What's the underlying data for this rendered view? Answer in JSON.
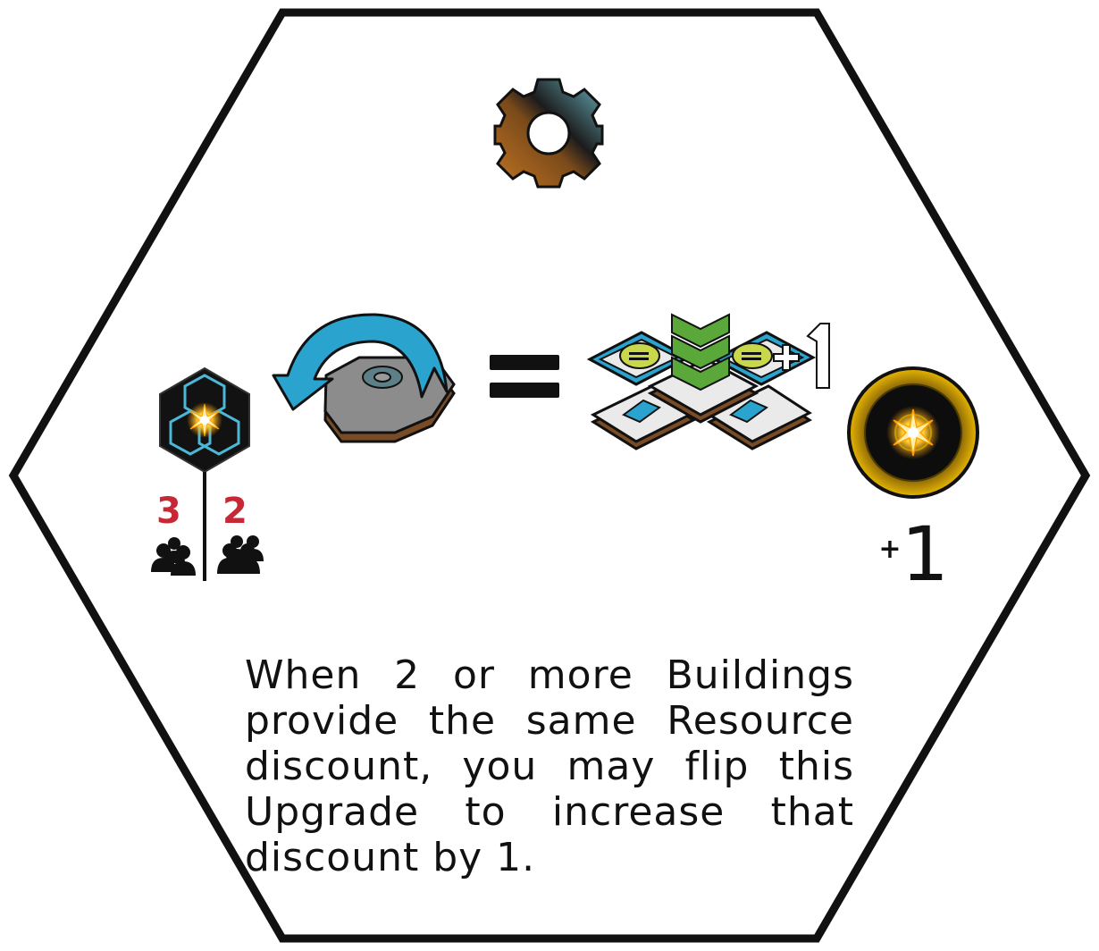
{
  "card": {
    "type_icon": "gear-icon",
    "cost_icon": "star-core-hex-icon",
    "player_counts": [
      {
        "value": "3",
        "icon": "three-players-icon"
      },
      {
        "value": "2",
        "icon": "two-players-icon"
      }
    ],
    "action_icon": "flip-tile-icon",
    "equals_icon": "equals-icon",
    "effect_icon": "stacked-discount-buildings-icon",
    "effect_badge": "+1",
    "reward": {
      "icon": "star-token-icon",
      "plus": "+",
      "amount": "1"
    },
    "rules_text": "When 2 or more Buildings provide the same Resource discount, you may flip this Upgrade to increase that discount by 1.",
    "colors": {
      "outline": "#111111",
      "number_red": "#c62836",
      "arrow_blue": "#2aa3cf",
      "tile_gray": "#8a8a8a",
      "gear_orange": "#c07020",
      "gear_teal": "#5aa0ae",
      "chevron_green": "#5aa83a",
      "token_gold": "#e7b400"
    }
  }
}
